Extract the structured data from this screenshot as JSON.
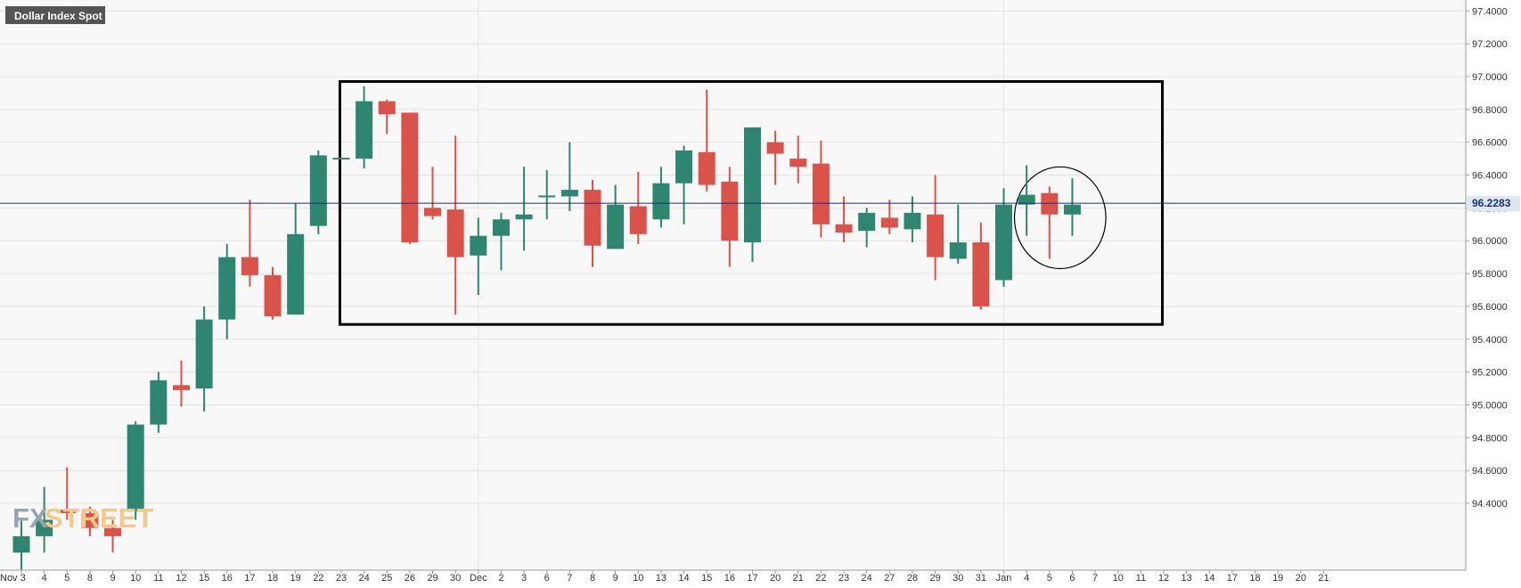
{
  "title": "Dollar Index Spot",
  "watermark": "FXSTREET",
  "last_price_label": "96.2283",
  "colors": {
    "bull": "#2e8570",
    "bear": "#d9534a",
    "last_price_line": "#1a2f7a",
    "last_price_tag_bg": "#dfe6ee",
    "title_bg": "#555555",
    "watermark_fx": "#9aa4b0",
    "watermark_street": "#f2c98a",
    "annotation": "#000000"
  },
  "chart_data": {
    "type": "candlestick",
    "title": "Dollar Index Spot",
    "ylim": [
      94.36,
      97.44
    ],
    "y_ticks": [
      "94.4000",
      "94.6000",
      "94.8000",
      "95.0000",
      "95.2000",
      "95.4000",
      "95.6000",
      "95.8000",
      "96.0000",
      "96.2000",
      "96.4000",
      "96.6000",
      "96.8000",
      "97.0000",
      "97.2000",
      "97.4000"
    ],
    "x_ticks": [
      "Nov 3",
      "4",
      "5",
      "8",
      "9",
      "10",
      "11",
      "12",
      "15",
      "16",
      "17",
      "18",
      "19",
      "22",
      "23",
      "24",
      "25",
      "26",
      "29",
      "30",
      "Dec",
      "2",
      "3",
      "6",
      "7",
      "8",
      "9",
      "10",
      "13",
      "14",
      "15",
      "16",
      "17",
      "20",
      "21",
      "22",
      "23",
      "24",
      "27",
      "28",
      "29",
      "30",
      "31",
      "Jan",
      "4",
      "5",
      "6",
      "7",
      "10",
      "11",
      "12",
      "13",
      "14",
      "17",
      "18",
      "19",
      "20",
      "21"
    ],
    "last_price": 96.2283,
    "grid": true,
    "candles": [
      {
        "date": "Nov 3",
        "open": 94.1,
        "high": 94.3,
        "low": 93.9,
        "close": 94.2
      },
      {
        "date": "4",
        "open": 94.2,
        "high": 94.5,
        "low": 94.1,
        "close": 94.3
      },
      {
        "date": "5",
        "open": 94.36,
        "high": 94.62,
        "low": 94.3,
        "close": 94.34
      },
      {
        "date": "8",
        "open": 94.34,
        "high": 94.38,
        "low": 94.2,
        "close": 94.25
      },
      {
        "date": "9",
        "open": 94.25,
        "high": 94.3,
        "low": 94.1,
        "close": 94.2
      },
      {
        "date": "10",
        "open": 94.35,
        "high": 94.9,
        "low": 94.3,
        "close": 94.88
      },
      {
        "date": "11",
        "open": 94.88,
        "high": 95.2,
        "low": 94.83,
        "close": 95.15
      },
      {
        "date": "12",
        "open": 95.12,
        "high": 95.27,
        "low": 94.99,
        "close": 95.09
      },
      {
        "date": "15",
        "open": 95.1,
        "high": 95.6,
        "low": 94.96,
        "close": 95.52
      },
      {
        "date": "16",
        "open": 95.52,
        "high": 95.98,
        "low": 95.4,
        "close": 95.9
      },
      {
        "date": "17",
        "open": 95.9,
        "high": 96.25,
        "low": 95.72,
        "close": 95.79
      },
      {
        "date": "18",
        "open": 95.79,
        "high": 95.84,
        "low": 95.52,
        "close": 95.54
      },
      {
        "date": "19",
        "open": 95.55,
        "high": 96.23,
        "low": 95.55,
        "close": 96.04
      },
      {
        "date": "22",
        "open": 96.09,
        "high": 96.55,
        "low": 96.04,
        "close": 96.52
      },
      {
        "date": "23",
        "open": 96.5,
        "high": 96.5,
        "low": 96.5,
        "close": 96.5
      },
      {
        "date": "24",
        "open": 96.5,
        "high": 96.94,
        "low": 96.44,
        "close": 96.85
      },
      {
        "date": "25",
        "open": 96.85,
        "high": 96.86,
        "low": 96.65,
        "close": 96.77
      },
      {
        "date": "26",
        "open": 96.78,
        "high": 96.78,
        "low": 95.98,
        "close": 95.99
      },
      {
        "date": "29",
        "open": 96.2,
        "high": 96.45,
        "low": 96.13,
        "close": 96.15
      },
      {
        "date": "30",
        "open": 96.19,
        "high": 96.64,
        "low": 95.55,
        "close": 95.9
      },
      {
        "date": "Dec",
        "open": 95.91,
        "high": 96.14,
        "low": 95.67,
        "close": 96.03
      },
      {
        "date": "2",
        "open": 96.03,
        "high": 96.17,
        "low": 95.82,
        "close": 96.13
      },
      {
        "date": "3",
        "open": 96.13,
        "high": 96.45,
        "low": 95.94,
        "close": 96.16
      },
      {
        "date": "6",
        "open": 96.27,
        "high": 96.43,
        "low": 96.13,
        "close": 96.27
      },
      {
        "date": "7",
        "open": 96.27,
        "high": 96.6,
        "low": 96.18,
        "close": 96.31
      },
      {
        "date": "8",
        "open": 96.31,
        "high": 96.37,
        "low": 95.84,
        "close": 95.97
      },
      {
        "date": "9",
        "open": 95.95,
        "high": 96.34,
        "low": 95.95,
        "close": 96.22
      },
      {
        "date": "10",
        "open": 96.21,
        "high": 96.42,
        "low": 95.98,
        "close": 96.04
      },
      {
        "date": "13",
        "open": 96.13,
        "high": 96.45,
        "low": 96.08,
        "close": 96.35
      },
      {
        "date": "14",
        "open": 96.35,
        "high": 96.58,
        "low": 96.1,
        "close": 96.55
      },
      {
        "date": "15",
        "open": 96.54,
        "high": 96.92,
        "low": 96.3,
        "close": 96.34
      },
      {
        "date": "16",
        "open": 96.36,
        "high": 96.45,
        "low": 95.84,
        "close": 96.0
      },
      {
        "date": "17",
        "open": 95.99,
        "high": 96.69,
        "low": 95.87,
        "close": 96.69
      },
      {
        "date": "20",
        "open": 96.6,
        "high": 96.67,
        "low": 96.34,
        "close": 96.53
      },
      {
        "date": "21",
        "open": 96.5,
        "high": 96.64,
        "low": 96.35,
        "close": 96.45
      },
      {
        "date": "22",
        "open": 96.47,
        "high": 96.61,
        "low": 96.02,
        "close": 96.1
      },
      {
        "date": "23",
        "open": 96.1,
        "high": 96.27,
        "low": 95.99,
        "close": 96.05
      },
      {
        "date": "24",
        "open": 96.06,
        "high": 96.2,
        "low": 95.96,
        "close": 96.17
      },
      {
        "date": "27",
        "open": 96.14,
        "high": 96.25,
        "low": 96.04,
        "close": 96.08
      },
      {
        "date": "28",
        "open": 96.07,
        "high": 96.27,
        "low": 95.99,
        "close": 96.17
      },
      {
        "date": "29",
        "open": 96.16,
        "high": 96.4,
        "low": 95.76,
        "close": 95.9
      },
      {
        "date": "30",
        "open": 95.89,
        "high": 96.22,
        "low": 95.86,
        "close": 95.99
      },
      {
        "date": "31",
        "open": 95.99,
        "high": 96.11,
        "low": 95.58,
        "close": 95.6
      },
      {
        "date": "Jan",
        "open": 95.76,
        "high": 96.32,
        "low": 95.72,
        "close": 96.22
      },
      {
        "date": "4",
        "open": 96.22,
        "high": 96.46,
        "low": 96.03,
        "close": 96.28
      },
      {
        "date": "5",
        "open": 96.29,
        "high": 96.33,
        "low": 95.89,
        "close": 96.16
      },
      {
        "date": "6",
        "open": 96.16,
        "high": 96.38,
        "low": 96.03,
        "close": 96.22
      }
    ],
    "annotations": [
      {
        "type": "rectangle",
        "from": "23",
        "to": "12",
        "y_top": 96.97,
        "y_bottom": 95.49
      },
      {
        "type": "ellipse",
        "center_date": "5",
        "center_y": 96.14,
        "x_span_days": 4,
        "y_radius": 0.31
      }
    ]
  }
}
